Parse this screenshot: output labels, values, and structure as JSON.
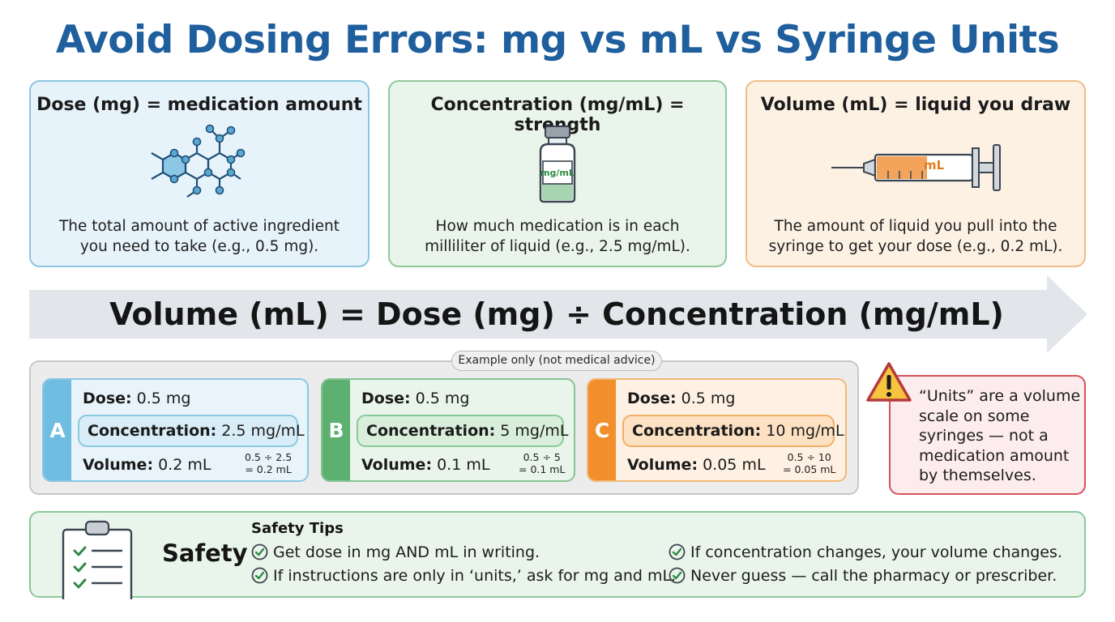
{
  "title": "Avoid Dosing Errors: mg vs mL vs Syringe Units",
  "cards": {
    "dose": {
      "title": "Dose (mg) = medication amount",
      "icon": "molecule-icon",
      "description": "The total amount of active ingredient you need to take (e.g., 0.5 mg)."
    },
    "concentration": {
      "title": "Concentration (mg/mL) = strength",
      "icon": "vial-icon",
      "vial_label": "mg/mL",
      "description": "How much medication is in each milliliter of liquid (e.g., 2.5 mg/mL)."
    },
    "volume": {
      "title": "Volume (mL) = liquid you draw",
      "icon": "syringe-icon",
      "syringe_label": "mL",
      "description": "The amount of liquid you pull into the syringe to get your dose (e.g., 0.2 mL)."
    }
  },
  "formula": "Volume (mL) = Dose (mg) ÷ Concentration (mg/mL)",
  "examples_note": "Example only (not medical advice)",
  "examples": [
    {
      "letter": "A",
      "dose_label": "Dose:",
      "dose_value": "0.5 mg",
      "conc_label": "Concentration:",
      "conc_value": "2.5 mg/mL",
      "vol_label": "Volume:",
      "vol_value": "0.2 mL",
      "calc_line1": "0.5 ÷ 2.5",
      "calc_line2": "= 0.2 mL"
    },
    {
      "letter": "B",
      "dose_label": "Dose:",
      "dose_value": "0.5 mg",
      "conc_label": "Concentration:",
      "conc_value": "5 mg/mL",
      "vol_label": "Volume:",
      "vol_value": "0.1 mL",
      "calc_line1": "0.5 ÷ 5",
      "calc_line2": "= 0.1 mL"
    },
    {
      "letter": "C",
      "dose_label": "Dose:",
      "dose_value": "0.5 mg",
      "conc_label": "Concentration:",
      "conc_value": "10 mg/mL",
      "vol_label": "Volume:",
      "vol_value": "0.05 mL",
      "calc_line1": "0.5 ÷ 10",
      "calc_line2": "= 0.05 mL"
    }
  ],
  "warning": {
    "icon": "warning-icon",
    "text": "“Units” are a volume scale on some syringes — not a medication amount by themselves."
  },
  "safety": {
    "icon": "clipboard-icon",
    "label": "Safety",
    "heading": "Safety Tips",
    "tips": [
      "Get dose in mg AND mL in writing.",
      "If instructions are only in ‘units,’ ask for mg and mL.",
      "If concentration changes, your volume changes.",
      "Never guess — call the pharmacy or prescriber."
    ]
  },
  "colors": {
    "title": "#1f5f9d",
    "dose_accent": "#6fbde0",
    "concentration_accent": "#5db06f",
    "volume_accent": "#f08f2c",
    "warning": "#d7525a"
  }
}
